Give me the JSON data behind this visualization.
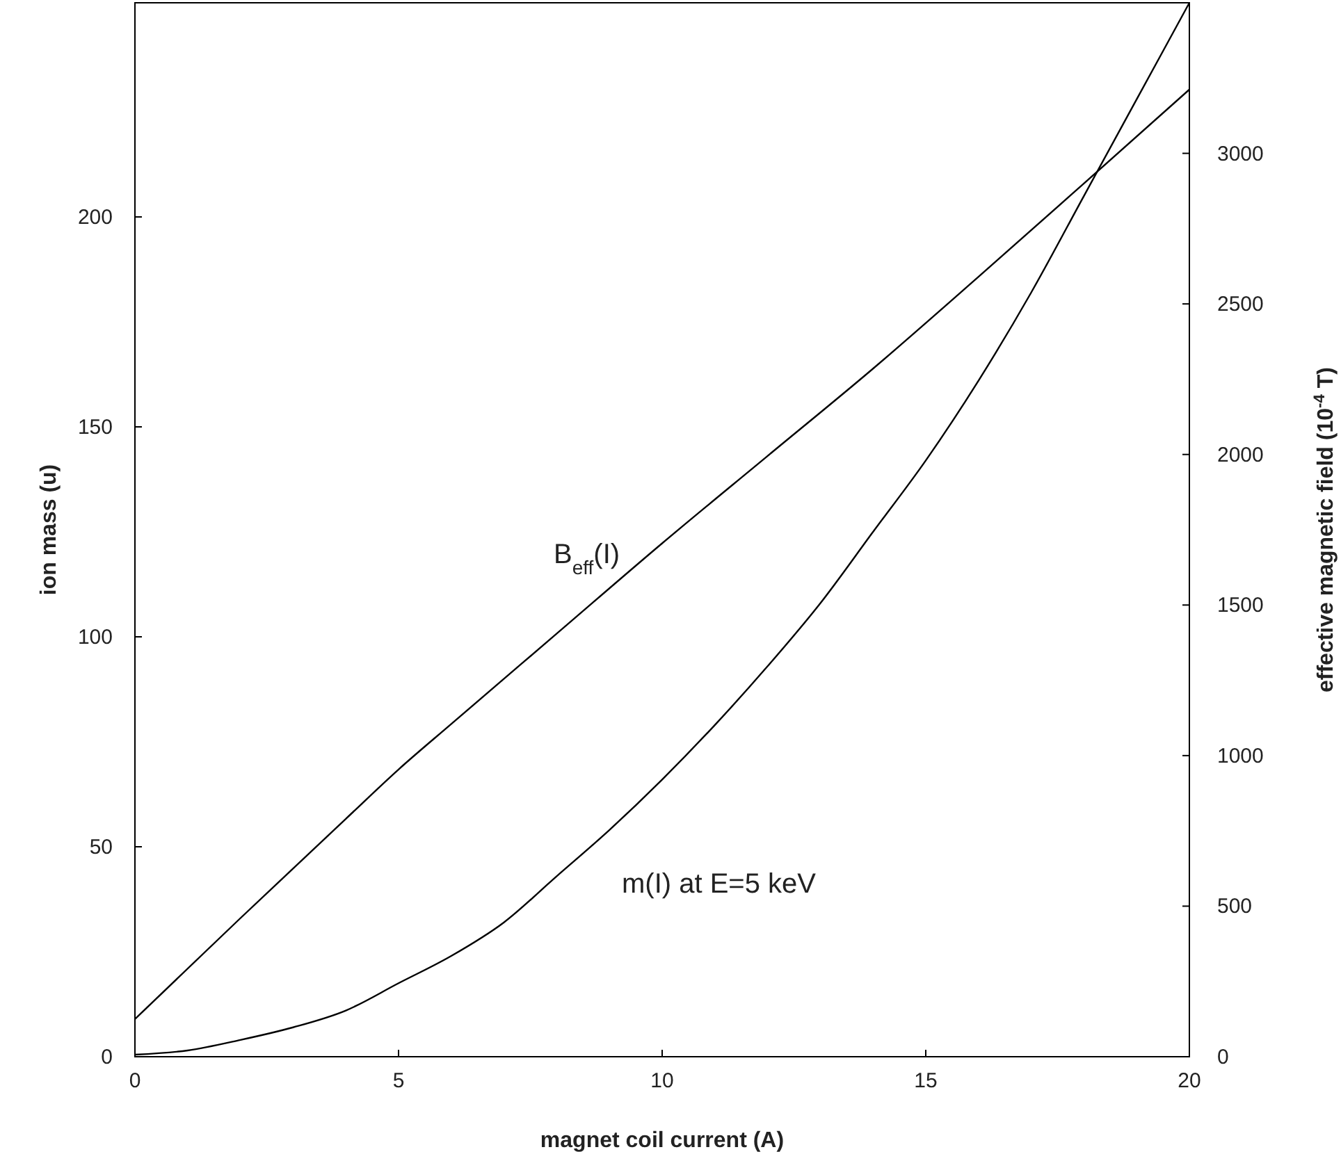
{
  "chart_data": {
    "type": "line",
    "xlabel": "magnet coil current (A)",
    "ylabel": "ion mass (u)",
    "y2label": "effective magnetic field (10$^{-4}$ T)",
    "xlim": [
      0,
      20
    ],
    "xticks": [
      0,
      5,
      10,
      15,
      20
    ],
    "ylim": [
      0,
      251
    ],
    "yticks": [
      0,
      50,
      100,
      150,
      200
    ],
    "y2lim": [
      0,
      3500
    ],
    "y2ticks": [
      0,
      500,
      1000,
      1500,
      2000,
      2500,
      3000
    ],
    "grid": false,
    "marker": "none",
    "line_style": "solid",
    "series": [
      {
        "color": "#000000",
        "x": [
          0,
          1,
          2,
          3,
          4,
          5,
          6,
          7,
          8,
          9,
          10,
          11,
          12,
          13,
          14,
          15,
          16,
          17,
          18,
          19,
          20
        ],
        "values": [
          0.5,
          1.5,
          4,
          7,
          11,
          17.5,
          24,
          32,
          43,
          54,
          66,
          79,
          93,
          108,
          125,
          142,
          161,
          182,
          205,
          228,
          251
        ]
      },
      {
        "color": "#000000",
        "axis": "y2",
        "x": [
          0,
          2,
          4,
          5,
          6,
          8,
          10,
          12,
          14,
          16,
          18,
          20
        ],
        "values": [
          125,
          460,
          790,
          954,
          1105,
          1405,
          1705,
          1995,
          2285,
          2590,
          2900,
          3212
        ]
      }
    ],
    "annotations": [
      "B$_{eff}$(I)",
      "m(I) at E=5 keV"
    ]
  }
}
